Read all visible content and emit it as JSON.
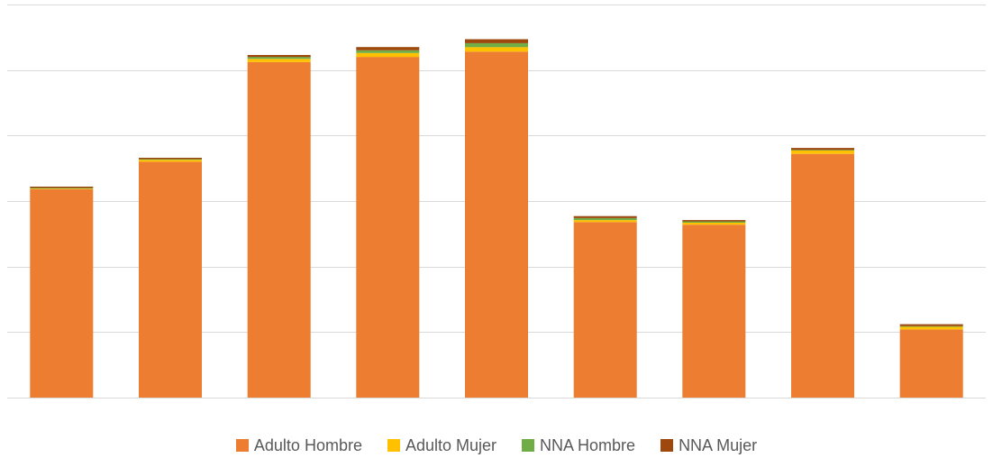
{
  "chart_data": {
    "type": "bar",
    "stacked": true,
    "categories": [
      "",
      "",
      "",
      "",
      "",
      "",
      "",
      "",
      ""
    ],
    "series": [
      {
        "name": "Adulto Hombre",
        "color": "#ED7D31",
        "values": [
          3.18,
          3.6,
          5.12,
          5.2,
          5.28,
          2.68,
          2.64,
          3.72,
          1.04
        ]
      },
      {
        "name": "Adulto Mujer",
        "color": "#FFC000",
        "values": [
          0.01,
          0.03,
          0.05,
          0.06,
          0.07,
          0.03,
          0.03,
          0.05,
          0.04
        ]
      },
      {
        "name": "NNA Hombre",
        "color": "#70AD47",
        "values": [
          0.01,
          0.01,
          0.03,
          0.04,
          0.06,
          0.03,
          0.02,
          0.01,
          0.01
        ]
      },
      {
        "name": "NNA Mujer",
        "color": "#9E480E",
        "values": [
          0.02,
          0.02,
          0.03,
          0.05,
          0.06,
          0.03,
          0.02,
          0.03,
          0.03
        ]
      }
    ],
    "ylim": [
      0,
      6
    ],
    "yticks": [
      0,
      1,
      2,
      3,
      4,
      5,
      6
    ],
    "grid": true,
    "gridColor": "#D9D9D9",
    "legend_position": "bottom"
  }
}
